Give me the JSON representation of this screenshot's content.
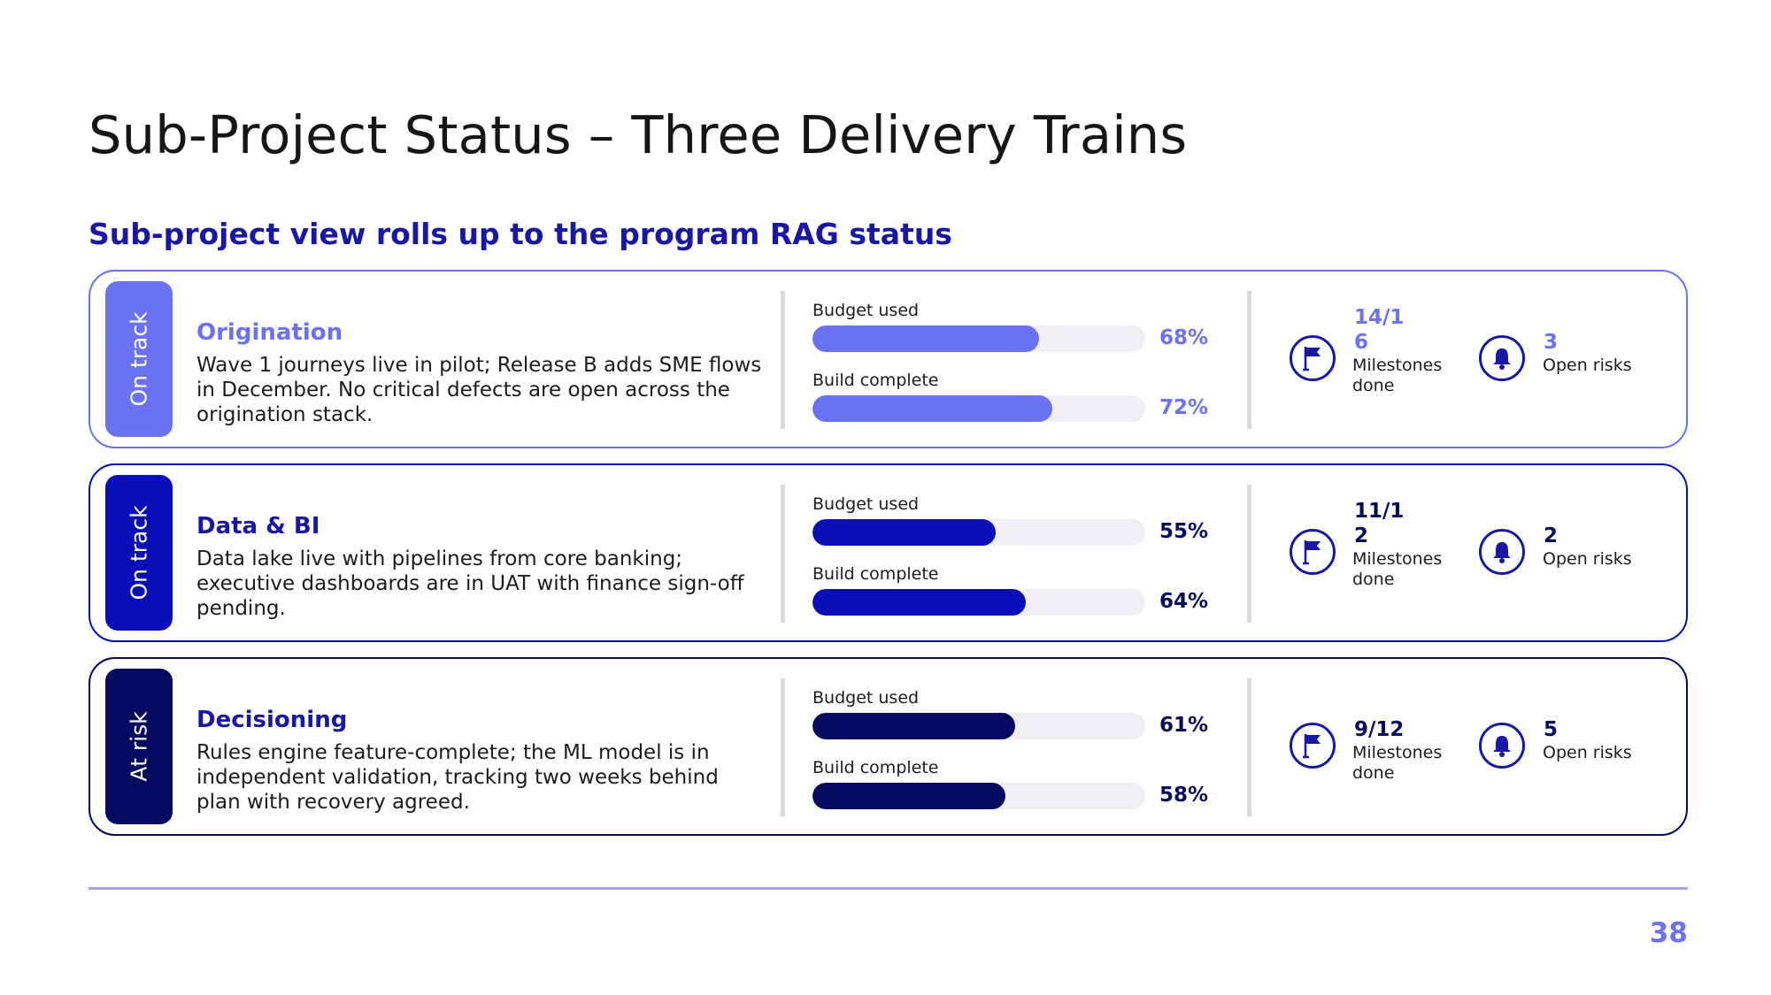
{
  "title": "Sub-Project Status – Three Delivery Trains",
  "subtitle": "Sub-project view rolls up to the program RAG status",
  "colors": {
    "light": "#6a72f2",
    "medium": "#0a0fb8",
    "dark": "#05095f",
    "heading_blue": "#1717a8",
    "divider": "#a8a4d6"
  },
  "rows": [
    {
      "status": "On track",
      "name": "Origination",
      "description": "Wave 1 journeys live in pilot; Release B adds SME flows in December. No critical defects are open across the origination stack.",
      "budget_label": "Budget used",
      "budget_pct": 68,
      "budget_text": "68%",
      "build_label": "Build complete",
      "build_pct": 72,
      "build_text": "72%",
      "milestones_value": "14/16",
      "milestones_label": "Milestones done",
      "risks_value": "3",
      "risks_label": "Open risks",
      "milestone_icon": "flag-icon",
      "risk_icon": "bell-icon"
    },
    {
      "status": "On track",
      "name": "Data & BI",
      "description": "Data lake live with pipelines from core banking; executive dashboards are in UAT with finance sign-off pending.",
      "budget_label": "Budget used",
      "budget_pct": 55,
      "budget_text": "55%",
      "build_label": "Build complete",
      "build_pct": 64,
      "build_text": "64%",
      "milestones_value": "11/12",
      "milestones_label": "Milestones done",
      "risks_value": "2",
      "risks_label": "Open risks",
      "milestone_icon": "flag-icon",
      "risk_icon": "bell-icon"
    },
    {
      "status": "At risk",
      "name": "Decisioning",
      "description": "Rules engine feature-complete; the ML model is in independent validation, tracking two weeks behind plan with recovery agreed.",
      "budget_label": "Budget used",
      "budget_pct": 61,
      "budget_text": "61%",
      "build_label": "Build complete",
      "build_pct": 58,
      "build_text": "58%",
      "milestones_value": "9/12",
      "milestones_label": "Milestones done",
      "risks_value": "5",
      "risks_label": "Open risks",
      "milestone_icon": "flag-icon",
      "risk_icon": "bell-icon"
    }
  ],
  "page_number": "38"
}
